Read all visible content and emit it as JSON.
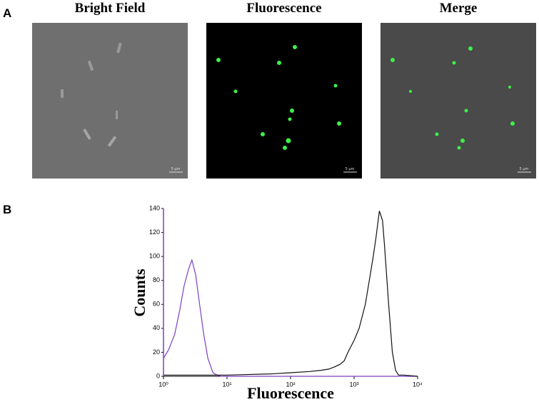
{
  "panel_a": {
    "label": "A",
    "images": [
      {
        "title": "Bright Field",
        "scale_bar": "5 μm"
      },
      {
        "title": "Fluorescence",
        "scale_bar": "5 μm"
      },
      {
        "title": "Merge",
        "scale_bar": "5 μm"
      }
    ]
  },
  "chart_data": {
    "type": "line",
    "panel_label": "B",
    "x_label": "Fluorescence",
    "y_label": "Counts",
    "xscale": "log",
    "xlim": [
      1,
      10000
    ],
    "xticks": [
      {
        "value": 1,
        "label": "10⁰"
      },
      {
        "value": 10,
        "label": "10¹"
      },
      {
        "value": 100,
        "label": "10²"
      },
      {
        "value": 1000,
        "label": "10³"
      },
      {
        "value": 10000,
        "label": "10⁴"
      }
    ],
    "ylim": [
      0,
      140
    ],
    "yticks": [
      0,
      20,
      40,
      60,
      80,
      100,
      120,
      140
    ],
    "series": [
      {
        "color": "#7b3fc4",
        "x": [
          1,
          1.2,
          1.5,
          1.8,
          2.1,
          2.5,
          2.8,
          3.2,
          3.7,
          4.3,
          5,
          6,
          7,
          8,
          10000
        ],
        "values": [
          15,
          22,
          35,
          55,
          75,
          90,
          97,
          85,
          60,
          35,
          15,
          3,
          1,
          0,
          0
        ]
      },
      {
        "color": "#111111",
        "x": [
          1,
          10,
          50,
          100,
          200,
          300,
          400,
          500,
          600,
          700,
          800,
          1000,
          1200,
          1500,
          1800,
          2000,
          2200,
          2500,
          2800,
          3000,
          3500,
          4000,
          4500,
          5000,
          6000,
          10000
        ],
        "values": [
          1,
          1,
          2,
          3,
          4,
          5,
          6,
          8,
          10,
          13,
          20,
          30,
          40,
          60,
          85,
          100,
          115,
          138,
          130,
          110,
          60,
          20,
          5,
          1,
          1,
          0
        ]
      }
    ]
  }
}
